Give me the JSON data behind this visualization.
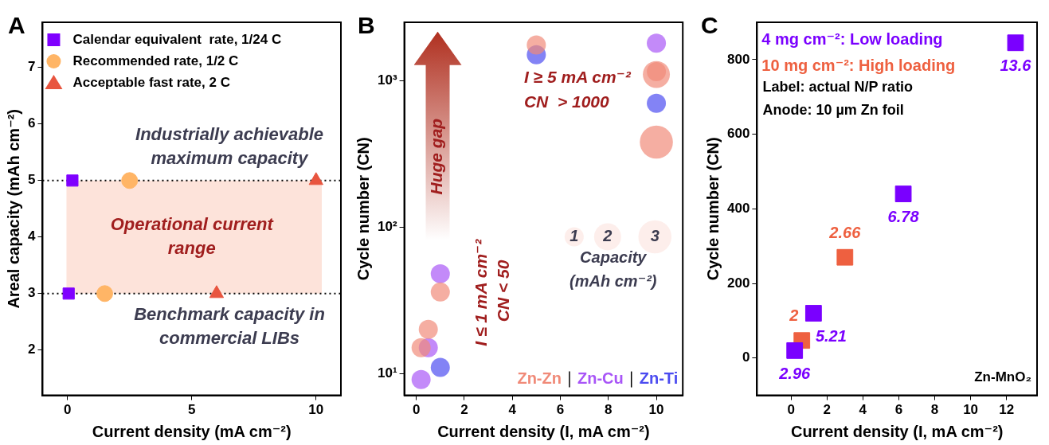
{
  "chart_data": [
    {
      "type": "scatter",
      "title": "A",
      "xlabel": "Current density (mA cm⁻²)",
      "ylabel": "Areal capacity (mAh cm⁻²)",
      "xlim": [
        -1,
        11
      ],
      "xticks": [
        0,
        5,
        10
      ],
      "ylim": [
        1.2,
        7.8
      ],
      "yticks": [
        2,
        3,
        4,
        5,
        6,
        7
      ],
      "legend": "top left",
      "series": [
        {
          "name": "Calendar equivalent  rate, 1/24 C",
          "color": "#7f00ff",
          "marker": "square",
          "x": [
            0.2,
            0.05
          ],
          "values": [
            5,
            3
          ]
        },
        {
          "name": "Recommended rate, 1/2 C",
          "color": "#ffb566",
          "marker": "circle",
          "x": [
            2.5,
            1.5
          ],
          "values": [
            5,
            3
          ]
        },
        {
          "name": "Acceptable fast rate, 2 C",
          "color": "#e8553f",
          "marker": "triangle",
          "x": [
            10,
            6
          ],
          "values": [
            5,
            3
          ]
        }
      ],
      "ref_lines": [
        {
          "axis": "y",
          "value": 5,
          "label": "Industrially achievable maximum capacity",
          "color": "#000000",
          "line_style": "dotted"
        },
        {
          "axis": "y",
          "value": 3,
          "label": "Benchmark capacity in commercial LIBs",
          "color": "#000000",
          "line_style": "dotted"
        }
      ],
      "bands": [
        {
          "axis": "y",
          "from": 3,
          "to": 5,
          "label": "Operational current range",
          "color": "#fde3da"
        }
      ]
    },
    {
      "type": "bubble",
      "title": "B",
      "xlabel": "Current density (I, mA cm⁻²)",
      "ylabel": "Cycle number (CN)",
      "xlim": [
        -0.5,
        11.1
      ],
      "xticks": [
        0,
        2,
        4,
        6,
        8,
        10
      ],
      "ylim": [
        7.1,
        2500
      ],
      "yticks": [
        {
          "value": 10,
          "label": "10¹"
        },
        {
          "value": 100,
          "label": "10²"
        },
        {
          "value": 1000,
          "label": "10³"
        }
      ],
      "log": "y",
      "legend": "bottom right",
      "marker": "circle",
      "size_legend": [
        1,
        2,
        3
      ],
      "series": [
        {
          "name": "Zn-Zn",
          "color": "#f08a78",
          "x": [
            5,
            10,
            10,
            10,
            1,
            0.5,
            0.2
          ],
          "values": [
            1750,
            1100,
            1150,
            380,
            36,
            20,
            15
          ],
          "sizes": [
            1,
            2,
            1,
            3,
            1,
            1,
            1
          ]
        },
        {
          "name": "Zn-Cu",
          "color": "#a855f7",
          "x": [
            10,
            1,
            0.5,
            0.2
          ],
          "values": [
            1800,
            48,
            15,
            9.1
          ],
          "sizes": [
            1,
            1,
            1,
            1
          ]
        },
        {
          "name": "Zn-Ti",
          "color": "#4b4bf0",
          "x": [
            5,
            10,
            1
          ],
          "values": [
            1500,
            700,
            11
          ],
          "sizes": [
            1,
            1,
            1
          ]
        }
      ],
      "annotations": [
        "Huge gap",
        "I ≥ 5 mA cm⁻²",
        "CN  > 1000",
        "I ≤ 1 mA cm⁻²",
        "CN < 50",
        "Capacity (mAh cm⁻²)"
      ]
    },
    {
      "type": "scatter",
      "title": "C",
      "xlabel": "Current density (I, mA cm⁻²)",
      "ylabel": "Cycle number (CN)",
      "xlim": [
        -1.9,
        13.7
      ],
      "xticks": [
        0,
        2,
        4,
        6,
        8,
        10,
        12
      ],
      "ylim": [
        -100,
        900
      ],
      "yticks": [
        0,
        200,
        400,
        600,
        800
      ],
      "legend": "top left",
      "marker": "square",
      "series": [
        {
          "name": "4 mg cm⁻²: Low loading",
          "color": "#7a00ff",
          "x": [
            0.2,
            1.25,
            6.25,
            12.5
          ],
          "values": [
            20,
            120,
            440,
            845
          ]
        },
        {
          "name": "10 mg cm⁻²: High loading",
          "color": "#ee6040",
          "x": [
            0.6,
            3.0
          ],
          "values": [
            47,
            270
          ]
        }
      ],
      "annotations": [
        "Label: actual N/P ratio",
        "Anode: 10 µm Zn foil",
        "Zn-MnO₂",
        {
          "text": "2.96",
          "x": 0.2,
          "y": 20
        },
        {
          "text": "5.21",
          "x": 1.25,
          "y": 120
        },
        {
          "text": "6.78",
          "x": 6.25,
          "y": 440
        },
        {
          "text": "13.6",
          "x": 12.5,
          "y": 845
        },
        {
          "text": "2",
          "x": 0.6,
          "y": 47
        },
        {
          "text": "2.66",
          "x": 3.0,
          "y": 270
        }
      ]
    }
  ]
}
